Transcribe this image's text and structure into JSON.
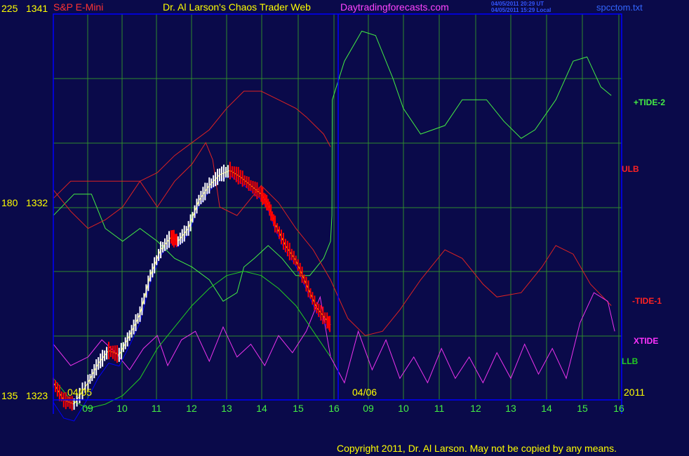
{
  "header": {
    "symbol": "S&P E-Mini",
    "title": "Dr. Al Larson's Chaos Trader Web",
    "site": "Daytradingforecasts.com",
    "time_ut": "04/05/2011 20:29 UT",
    "time_local": "04/05/2011 15:29 Local",
    "file": "spcctom.txt"
  },
  "axis_left": {
    "top": {
      "level": "225",
      "price": "1341"
    },
    "mid": {
      "level": "180",
      "price": "1332"
    },
    "bottom": {
      "level": "135",
      "price": "1323"
    }
  },
  "dates": {
    "day1": "04/05",
    "day2": "04/06",
    "year": "2011"
  },
  "legend": {
    "tide2": "+TIDE-2",
    "ulb": "ULB",
    "tide1": "-TIDE-1",
    "xtide": "XTIDE",
    "llb": "LLB"
  },
  "copyright": "Copyright 2011, Dr. Al Larson. May not be copied by any means.",
  "colors": {
    "background": "#0a0a4a",
    "grid": "#2e8b2e",
    "frame": "#0000ff",
    "tide2": "#44ee44",
    "ulb": "#dd2222",
    "tide1": "#dd2222",
    "xtide": "#ee33ee",
    "llb": "#22cc22",
    "price_up": "#ffffff",
    "price_down": "#ff0000",
    "ma": "#0000ff",
    "avg": "#ffff00",
    "label_red": "#ff3333",
    "label_yellow": "#ffff00",
    "label_magenta": "#ff33ff"
  },
  "chart_data": {
    "type": "line",
    "title": "Dr. Al Larson's Chaos Trader Web",
    "x_ticks": [
      "09",
      "10",
      "11",
      "12",
      "13",
      "14",
      "15",
      "16",
      "09",
      "10",
      "11",
      "12",
      "13",
      "14",
      "15",
      "16"
    ],
    "x_range": [
      8,
      24.4
    ],
    "y_price_range": [
      1323,
      1341
    ],
    "y_tide_range": [
      135,
      225
    ],
    "y_ticks": [
      {
        "level": 135,
        "price": 1323
      },
      {
        "level": 180,
        "price": 1332
      },
      {
        "level": 225,
        "price": 1341
      }
    ],
    "grid": true,
    "legend_placement": "right",
    "series": [
      {
        "name": "+TIDE-2",
        "axis": "tide",
        "points": [
          [
            8.0,
            178
          ],
          [
            8.6,
            183
          ],
          [
            9.1,
            183
          ],
          [
            9.5,
            175
          ],
          [
            10.0,
            172
          ],
          [
            10.5,
            175
          ],
          [
            11.0,
            172
          ],
          [
            11.5,
            168
          ],
          [
            12.0,
            166
          ],
          [
            12.5,
            163
          ],
          [
            12.9,
            158
          ],
          [
            13.3,
            160
          ],
          [
            13.5,
            166
          ],
          [
            13.8,
            168
          ],
          [
            14.2,
            171
          ],
          [
            14.6,
            168
          ],
          [
            15.0,
            164
          ],
          [
            15.4,
            164
          ],
          [
            15.8,
            168
          ],
          [
            16.0,
            172
          ],
          [
            16.04,
            178
          ],
          [
            16.05,
            205
          ],
          [
            16.4,
            214
          ],
          [
            16.9,
            221
          ],
          [
            17.3,
            220
          ],
          [
            17.8,
            210
          ],
          [
            18.1,
            203
          ],
          [
            18.6,
            197
          ],
          [
            19.3,
            199
          ],
          [
            19.8,
            205
          ],
          [
            20.5,
            205
          ],
          [
            21.0,
            200
          ],
          [
            21.5,
            196
          ],
          [
            21.9,
            198
          ],
          [
            22.5,
            205
          ],
          [
            23.0,
            214
          ],
          [
            23.4,
            215
          ],
          [
            23.8,
            208
          ],
          [
            24.1,
            206
          ]
        ]
      },
      {
        "name": "ULB",
        "axis": "tide",
        "points": [
          [
            8.0,
            182
          ],
          [
            8.5,
            186
          ],
          [
            9.0,
            186
          ],
          [
            9.5,
            186
          ],
          [
            10.0,
            186
          ],
          [
            10.5,
            186
          ],
          [
            11.0,
            188
          ],
          [
            11.5,
            192
          ],
          [
            12.0,
            195
          ],
          [
            12.5,
            198
          ],
          [
            13.0,
            203
          ],
          [
            13.5,
            207
          ],
          [
            14.0,
            207
          ],
          [
            14.5,
            205
          ],
          [
            15.0,
            203
          ],
          [
            15.3,
            201
          ],
          [
            15.8,
            197
          ],
          [
            16.0,
            194
          ]
        ]
      },
      {
        "name": "-TIDE-1",
        "axis": "tide",
        "points": [
          [
            8.0,
            184
          ],
          [
            8.5,
            179
          ],
          [
            9.0,
            175
          ],
          [
            9.5,
            177
          ],
          [
            10.0,
            180
          ],
          [
            10.5,
            186
          ],
          [
            11.0,
            180
          ],
          [
            11.5,
            186
          ],
          [
            12.0,
            190
          ],
          [
            12.4,
            195
          ],
          [
            12.6,
            191
          ],
          [
            12.8,
            180
          ],
          [
            13.3,
            178
          ],
          [
            13.8,
            183
          ],
          [
            14.0,
            185
          ],
          [
            14.5,
            181
          ],
          [
            15.0,
            175
          ],
          [
            15.5,
            170
          ],
          [
            16.0,
            163
          ],
          [
            16.5,
            154
          ],
          [
            17.0,
            150
          ],
          [
            17.5,
            151
          ],
          [
            18.0,
            156
          ],
          [
            18.6,
            163
          ],
          [
            19.3,
            170
          ],
          [
            19.8,
            168
          ],
          [
            20.4,
            162
          ],
          [
            20.8,
            159
          ],
          [
            21.5,
            160
          ],
          [
            22.1,
            166
          ],
          [
            22.5,
            171
          ],
          [
            23.0,
            169
          ],
          [
            23.5,
            162
          ],
          [
            24.1,
            157
          ]
        ]
      },
      {
        "name": "XTIDE",
        "axis": "tide",
        "points": [
          [
            8.0,
            148
          ],
          [
            8.5,
            143
          ],
          [
            9.0,
            145
          ],
          [
            9.4,
            149
          ],
          [
            9.8,
            146
          ],
          [
            10.2,
            142
          ],
          [
            10.6,
            147
          ],
          [
            11.0,
            150
          ],
          [
            11.3,
            143
          ],
          [
            11.7,
            149
          ],
          [
            12.1,
            151
          ],
          [
            12.5,
            144
          ],
          [
            12.9,
            152
          ],
          [
            13.3,
            145
          ],
          [
            13.7,
            148
          ],
          [
            14.1,
            143
          ],
          [
            14.5,
            150
          ],
          [
            14.9,
            146
          ],
          [
            15.3,
            151
          ],
          [
            15.7,
            159
          ],
          [
            16.0,
            145
          ],
          [
            16.4,
            139
          ],
          [
            16.8,
            151
          ],
          [
            17.2,
            142
          ],
          [
            17.6,
            149
          ],
          [
            18.0,
            140
          ],
          [
            18.4,
            145
          ],
          [
            18.8,
            139
          ],
          [
            19.2,
            147
          ],
          [
            19.6,
            140
          ],
          [
            20.0,
            145
          ],
          [
            20.4,
            139
          ],
          [
            20.8,
            146
          ],
          [
            21.2,
            140
          ],
          [
            21.6,
            148
          ],
          [
            22.0,
            141
          ],
          [
            22.4,
            147
          ],
          [
            22.8,
            140
          ],
          [
            23.2,
            153
          ],
          [
            23.6,
            160
          ],
          [
            24.0,
            158
          ],
          [
            24.2,
            151
          ]
        ]
      },
      {
        "name": "LLB",
        "axis": "tide",
        "points": [
          [
            8.0,
            140
          ],
          [
            8.5,
            135
          ],
          [
            9.0,
            133
          ],
          [
            9.5,
            134
          ],
          [
            10.0,
            136
          ],
          [
            10.5,
            140
          ],
          [
            11.0,
            147
          ],
          [
            11.5,
            152
          ],
          [
            12.0,
            157
          ],
          [
            12.5,
            161
          ],
          [
            13.0,
            164
          ],
          [
            13.5,
            165
          ],
          [
            14.0,
            164
          ],
          [
            14.5,
            161
          ],
          [
            15.0,
            157
          ],
          [
            15.5,
            151
          ],
          [
            16.0,
            145
          ]
        ]
      },
      {
        "name": "price",
        "axis": "price",
        "points": [
          [
            8.0,
            1323.8
          ],
          [
            8.3,
            1323.0
          ],
          [
            8.6,
            1322.8
          ],
          [
            9.0,
            1323.8
          ],
          [
            9.3,
            1324.7
          ],
          [
            9.6,
            1325.3
          ],
          [
            9.9,
            1325.1
          ],
          [
            10.2,
            1326.0
          ],
          [
            10.5,
            1327.0
          ],
          [
            10.8,
            1328.8
          ],
          [
            11.1,
            1330.0
          ],
          [
            11.4,
            1330.6
          ],
          [
            11.6,
            1330.4
          ],
          [
            11.9,
            1331.0
          ],
          [
            12.2,
            1332.3
          ],
          [
            12.5,
            1333.0
          ],
          [
            12.8,
            1333.5
          ],
          [
            13.1,
            1333.7
          ],
          [
            13.4,
            1333.4
          ],
          [
            13.7,
            1333.0
          ],
          [
            14.0,
            1332.6
          ],
          [
            14.2,
            1332.1
          ],
          [
            14.4,
            1331.2
          ],
          [
            14.7,
            1330.2
          ],
          [
            15.0,
            1329.5
          ],
          [
            15.3,
            1328.4
          ],
          [
            15.6,
            1327.3
          ],
          [
            15.9,
            1326.7
          ],
          [
            16.0,
            1326.5
          ]
        ]
      }
    ]
  }
}
